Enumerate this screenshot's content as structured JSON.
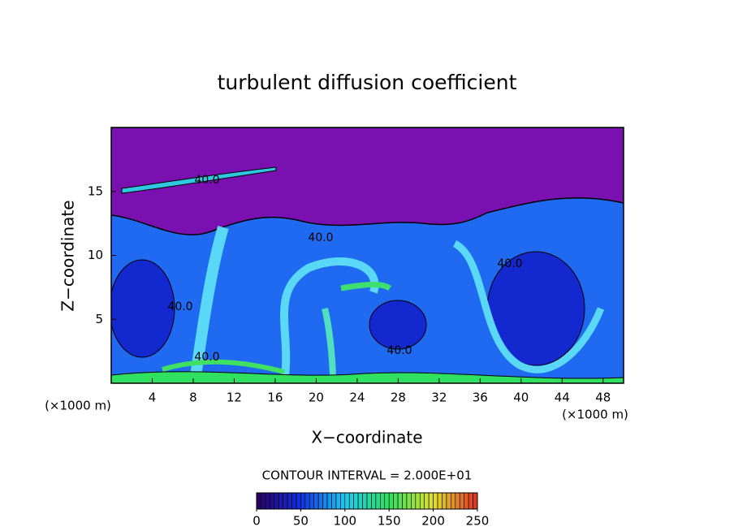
{
  "chart_data": {
    "type": "contour",
    "title": "turbulent diffusion coefficient",
    "x_label": "X−coordinate",
    "y_label": "Z−coordinate",
    "x_unit_label": "(×1000 m)",
    "y_unit_label": "(×1000 m)",
    "xlim": [
      0,
      50
    ],
    "xticks": [
      4,
      8,
      12,
      16,
      20,
      24,
      28,
      32,
      36,
      40,
      44,
      48
    ],
    "ylim": [
      0,
      20
    ],
    "yticks": [
      5,
      10,
      15
    ],
    "contour_interval_label": "CONTOUR INTERVAL = 2.000E+01",
    "contour_labels": [
      "40.0",
      "40.0",
      "40.0",
      "40.0",
      "40.0",
      "40.0"
    ],
    "colorbar": {
      "lim": [
        0,
        250
      ],
      "ticks": [
        0,
        50,
        100,
        150,
        200,
        250
      ],
      "colors": [
        "#2a0060",
        "#1030e0",
        "#20c8f0",
        "#30e060",
        "#e0e030",
        "#e03020"
      ]
    }
  }
}
